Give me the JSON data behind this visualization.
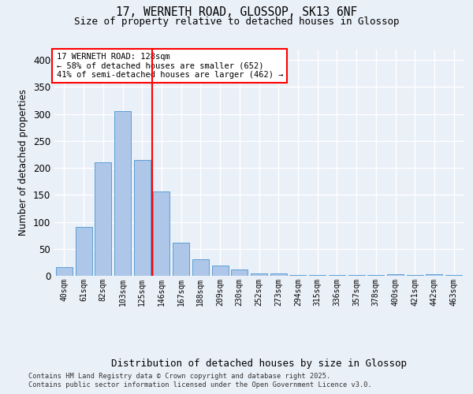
{
  "title1": "17, WERNETH ROAD, GLOSSOP, SK13 6NF",
  "title2": "Size of property relative to detached houses in Glossop",
  "xlabel": "Distribution of detached houses by size in Glossop",
  "ylabel": "Number of detached properties",
  "categories": [
    "40sqm",
    "61sqm",
    "82sqm",
    "103sqm",
    "125sqm",
    "146sqm",
    "167sqm",
    "188sqm",
    "209sqm",
    "230sqm",
    "252sqm",
    "273sqm",
    "294sqm",
    "315sqm",
    "336sqm",
    "357sqm",
    "378sqm",
    "400sqm",
    "421sqm",
    "442sqm",
    "463sqm"
  ],
  "values": [
    16,
    91,
    210,
    305,
    215,
    157,
    62,
    30,
    19,
    11,
    5,
    4,
    2,
    2,
    1,
    2,
    1,
    3,
    1,
    3,
    2
  ],
  "bar_color": "#aec6e8",
  "bar_edge_color": "#5a9fd4",
  "annotation_text": "17 WERNETH ROAD: 128sqm\n← 58% of detached houses are smaller (652)\n41% of semi-detached houses are larger (462) →",
  "footer1": "Contains HM Land Registry data © Crown copyright and database right 2025.",
  "footer2": "Contains public sector information licensed under the Open Government Licence v3.0.",
  "bg_color": "#eaf0f8",
  "plot_bg_color": "#eaf0f8",
  "grid_color": "#ffffff",
  "ylim": [
    0,
    420
  ],
  "yticks": [
    0,
    50,
    100,
    150,
    200,
    250,
    300,
    350,
    400
  ]
}
